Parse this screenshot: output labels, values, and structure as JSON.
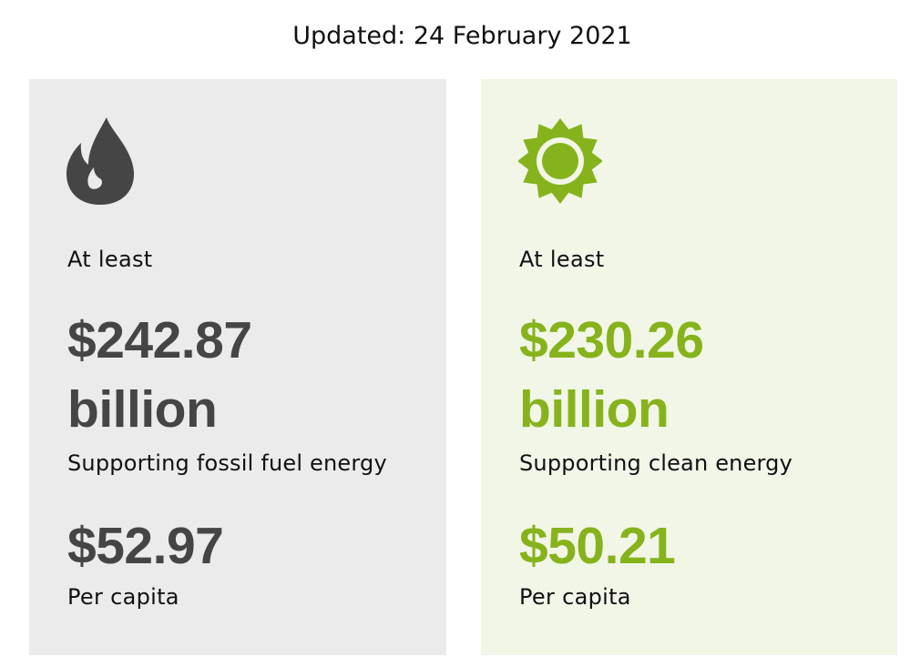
{
  "header": {
    "updated_text": "Updated: 24 February 2021"
  },
  "fossil": {
    "icon": "flame-icon",
    "at_least": "At least",
    "amount": "$242.87",
    "amount_unit": "billion",
    "description": "Supporting fossil fuel energy",
    "per_capita_amount": "$52.97",
    "per_capita_label": "Per capita",
    "color": "#454545",
    "background": "#ebebeb"
  },
  "clean": {
    "icon": "sun-icon",
    "at_least": "At least",
    "amount": "$230.26",
    "amount_unit": "billion",
    "description": "Supporting clean energy",
    "per_capita_amount": "$50.21",
    "per_capita_label": "Per capita",
    "color": "#86b31c",
    "background": "#f1f6e7"
  }
}
